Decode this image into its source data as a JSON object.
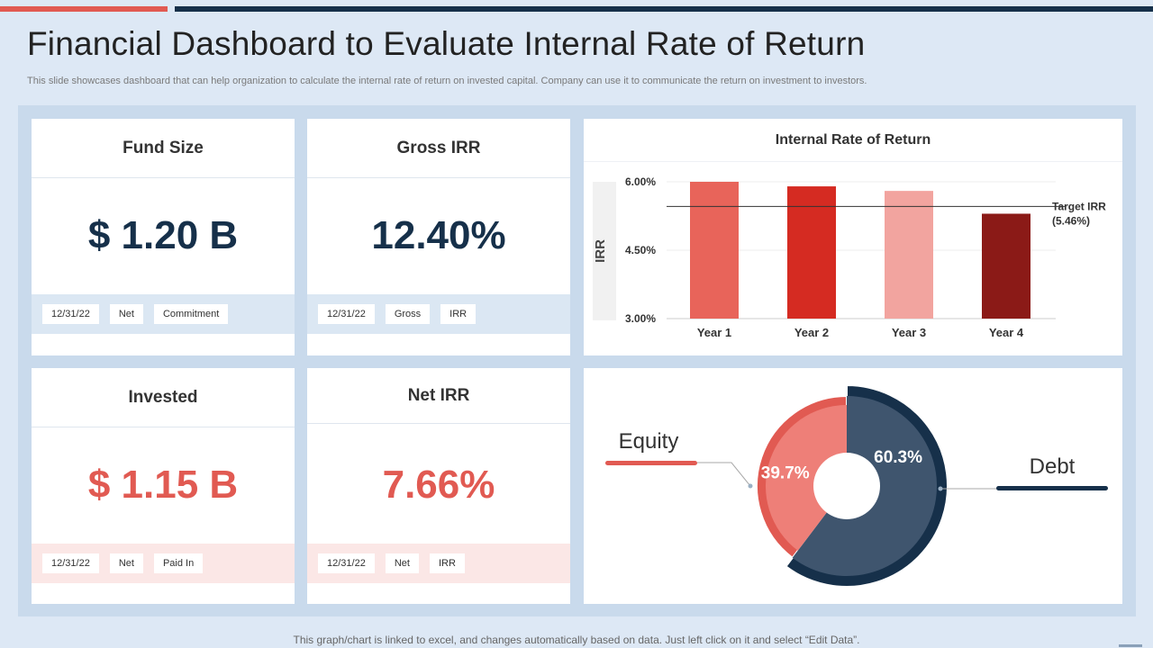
{
  "header": {
    "title": "Financial Dashboard to Evaluate Internal Rate of Return",
    "subtitle": "This slide showcases dashboard that can help organization to calculate the internal rate of return on invested capital. Company can use it to communicate the return on investment to investors."
  },
  "cards": {
    "fund_size": {
      "title": "Fund Size",
      "value": "$ 1.20 B",
      "tags": [
        "12/31/22",
        "Net",
        "Commitment"
      ]
    },
    "gross_irr": {
      "title": "Gross IRR",
      "value": "12.40%",
      "tags": [
        "12/31/22",
        "Gross",
        "IRR"
      ]
    },
    "invested": {
      "title": "Invested",
      "value": "$ 1.15 B",
      "tags": [
        "12/31/22",
        "Net",
        "Paid In"
      ]
    },
    "net_irr": {
      "title": "Net IRR",
      "value": "7.66%",
      "tags": [
        "12/31/22",
        "Net",
        "IRR"
      ]
    }
  },
  "colors": {
    "navy": "#16304a",
    "accent_red": "#e15a52",
    "background": "#dde8f5",
    "frame": "#c9daec"
  },
  "chart_data": [
    {
      "type": "bar",
      "title": "Internal Rate of Return",
      "ylabel": "IRR",
      "categories": [
        "Year 1",
        "Year 2",
        "Year 3",
        "Year 4"
      ],
      "values": [
        6.0,
        5.9,
        5.8,
        5.3
      ],
      "bar_colors": [
        "#e8645a",
        "#d52b22",
        "#f2a49f",
        "#8b1a17"
      ],
      "ylim": [
        3.0,
        6.0
      ],
      "yticks": [
        3.0,
        4.5,
        6.0
      ],
      "ytick_labels": [
        "3.00%",
        "4.50%",
        "6.00%"
      ],
      "target": {
        "value": 5.46,
        "label_line1": "Target IRR",
        "label_line2": "(5.46%)"
      },
      "grid": true
    },
    {
      "type": "pie",
      "slices": [
        {
          "name": "Debt",
          "value": 60.3,
          "label": "60.3%",
          "color": "#3f556e",
          "ring_color": "#16304a"
        },
        {
          "name": "Equity",
          "value": 39.7,
          "label": "39.7%",
          "color": "#ee7f78",
          "ring_color": "#e15a52"
        }
      ],
      "legend": [
        "Equity",
        "Debt"
      ],
      "donut": true
    }
  ],
  "footer": {
    "note": "This graph/chart is linked to excel, and changes automatically based on data. Just left click on it and select “Edit Data”."
  }
}
